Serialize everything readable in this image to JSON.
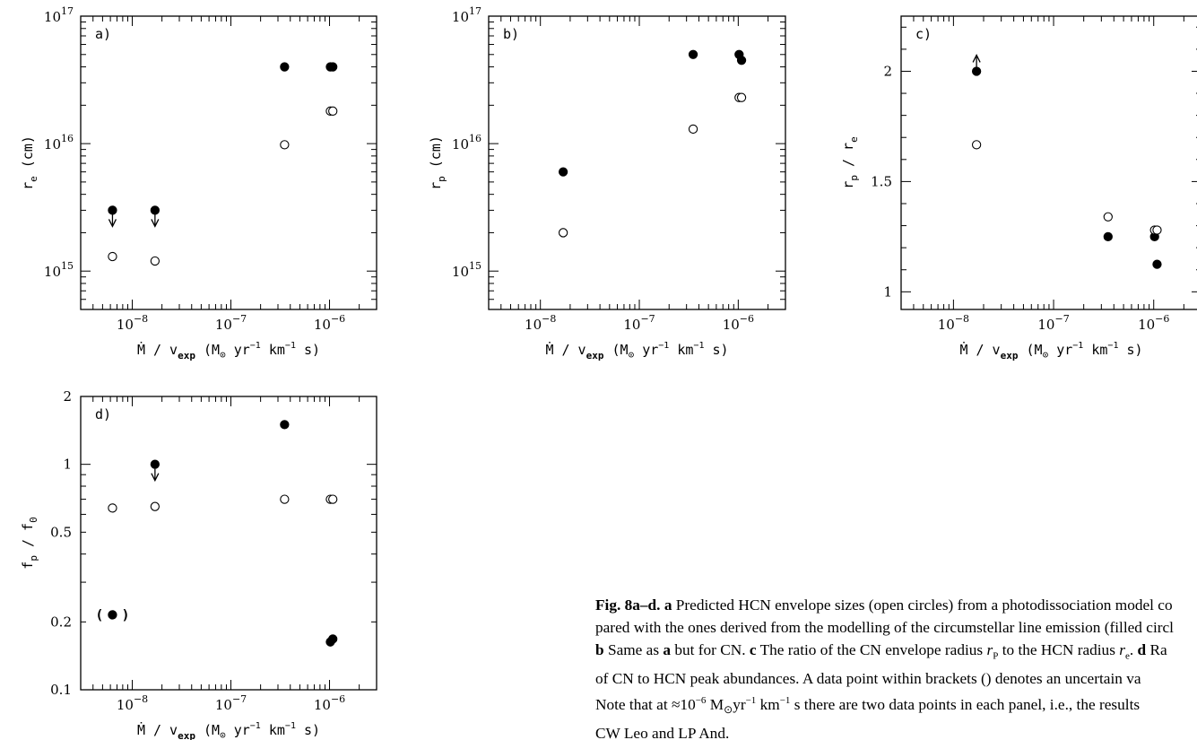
{
  "chart_data": [
    {
      "type": "scatter",
      "panel_label": "a)",
      "xlabel": "Ṁ / v_exp (M⊙ yr⁻¹ km⁻¹ s)",
      "ylabel": "r_e (cm)",
      "xscale": "log",
      "yscale": "log",
      "xlim": [
        3e-09,
        3e-06
      ],
      "ylim": [
        500000000000000.0,
        1e+17
      ],
      "x_ticks": [
        "10^-8",
        "10^-7",
        "10^-6"
      ],
      "y_ticks": [
        "10^15",
        "10^16",
        "10^17"
      ],
      "series": [
        {
          "marker": "filled",
          "points": [
            {
              "x": 6.3e-09,
              "y": 3000000000000000.0,
              "upper_limit": true
            },
            {
              "x": 1.7e-08,
              "y": 3000000000000000.0,
              "upper_limit": true
            },
            {
              "x": 3.5e-07,
              "y": 4e+16
            },
            {
              "x": 1.02e-06,
              "y": 4e+16
            },
            {
              "x": 1.08e-06,
              "y": 4e+16
            }
          ]
        },
        {
          "marker": "open",
          "points": [
            {
              "x": 6.3e-09,
              "y": 1300000000000000.0
            },
            {
              "x": 1.7e-08,
              "y": 1200000000000000.0
            },
            {
              "x": 3.5e-07,
              "y": 9800000000000000.0
            },
            {
              "x": 1.02e-06,
              "y": 1.8e+16
            },
            {
              "x": 1.08e-06,
              "y": 1.8e+16
            }
          ]
        }
      ]
    },
    {
      "type": "scatter",
      "panel_label": "b)",
      "xlabel": "Ṁ / v_exp (M⊙ yr⁻¹ km⁻¹ s)",
      "ylabel": "r_p (cm)",
      "xscale": "log",
      "yscale": "log",
      "xlim": [
        3e-09,
        3e-06
      ],
      "ylim": [
        500000000000000.0,
        1e+17
      ],
      "x_ticks": [
        "10^-8",
        "10^-7",
        "10^-6"
      ],
      "y_ticks": [
        "10^15",
        "10^16",
        "10^17"
      ],
      "series": [
        {
          "marker": "filled",
          "points": [
            {
              "x": 1.7e-08,
              "y": 6000000000000000.0
            },
            {
              "x": 3.5e-07,
              "y": 5e+16
            },
            {
              "x": 1.02e-06,
              "y": 5e+16
            },
            {
              "x": 1.08e-06,
              "y": 4.5e+16
            }
          ]
        },
        {
          "marker": "open",
          "points": [
            {
              "x": 1.7e-08,
              "y": 2000000000000000.0
            },
            {
              "x": 3.5e-07,
              "y": 1.3e+16
            },
            {
              "x": 1.02e-06,
              "y": 2.3e+16
            },
            {
              "x": 1.08e-06,
              "y": 2.3e+16
            }
          ]
        }
      ]
    },
    {
      "type": "scatter",
      "panel_label": "c)",
      "xlabel": "Ṁ / v_exp (M⊙ yr⁻¹ km⁻¹ s)",
      "ylabel": "r_p / r_e",
      "xscale": "log",
      "yscale": "linear",
      "xlim": [
        3e-09,
        3e-06
      ],
      "ylim": [
        0.92,
        2.25
      ],
      "x_ticks": [
        "10^-8",
        "10^-7",
        "10^-6"
      ],
      "y_ticks": [
        "1",
        "1.5",
        "2"
      ],
      "series": [
        {
          "marker": "filled",
          "points": [
            {
              "x": 1.7e-08,
              "y": 2.0,
              "lower_limit": true
            },
            {
              "x": 3.5e-07,
              "y": 1.25
            },
            {
              "x": 1.02e-06,
              "y": 1.25
            },
            {
              "x": 1.08e-06,
              "y": 1.125
            }
          ]
        },
        {
          "marker": "open",
          "points": [
            {
              "x": 1.7e-08,
              "y": 1.667
            },
            {
              "x": 3.5e-07,
              "y": 1.34
            },
            {
              "x": 1.02e-06,
              "y": 1.28
            },
            {
              "x": 1.08e-06,
              "y": 1.28
            }
          ]
        }
      ]
    },
    {
      "type": "scatter",
      "panel_label": "d)",
      "xlabel": "Ṁ / v_exp (M⊙ yr⁻¹ km⁻¹ s)",
      "ylabel": "f_p / f_0",
      "xscale": "log",
      "yscale": "log",
      "xlim": [
        3e-09,
        3e-06
      ],
      "ylim": [
        0.1,
        2
      ],
      "x_ticks": [
        "10^-8",
        "10^-7",
        "10^-6"
      ],
      "y_ticks": [
        "0.1",
        "0.2",
        "0.5",
        "1",
        "2"
      ],
      "series": [
        {
          "marker": "filled",
          "points": [
            {
              "x": 6.3e-09,
              "y": 0.215,
              "uncertain": true
            },
            {
              "x": 1.7e-08,
              "y": 1.0,
              "upper_limit": true
            },
            {
              "x": 3.5e-07,
              "y": 1.5
            },
            {
              "x": 1.02e-06,
              "y": 0.163
            },
            {
              "x": 1.08e-06,
              "y": 0.168
            }
          ]
        },
        {
          "marker": "open",
          "points": [
            {
              "x": 6.3e-09,
              "y": 0.64
            },
            {
              "x": 1.7e-08,
              "y": 0.65
            },
            {
              "x": 3.5e-07,
              "y": 0.7
            },
            {
              "x": 1.02e-06,
              "y": 0.7
            },
            {
              "x": 1.08e-06,
              "y": 0.7
            }
          ]
        }
      ]
    }
  ],
  "caption": {
    "lines": [
      "Fig. 8a–d. a Predicted HCN envelope sizes (open circles) from a photodissociation model co",
      "pared with the ones derived from the modelling of the circumstellar line emission (filled circl",
      "b Same as a but for CN. c The ratio of the CN envelope radius r_P to the HCN radius r_e. d Ra",
      "of CN to HCN peak abundances. A data point within brackets () denotes an uncertain va",
      "Note that at ≈10^−6 M⊙yr^−1 km^−1 s there are two data points in each panel, i.e., the results",
      "CW Leo and LP And."
    ],
    "fig_label": "Fig. 8a–d.",
    "line1_a": "a",
    "line1_rest": "Predicted HCN envelope sizes (open circles) from a photodissociation model co",
    "line2": "pared with the ones derived from the modelling of the circumstellar line emission (filled circl",
    "line3_b": "b",
    "line3_t1": "Same as",
    "line3_a": "a",
    "line3_t2": "but for CN.",
    "line3_c": "c",
    "line3_t3": "The ratio of the CN envelope radius",
    "line3_rP": "r",
    "line3_rP_sub": "P",
    "line3_t4": "to the HCN radius",
    "line3_re": "r",
    "line3_re_sub": "e",
    "line3_t5": ".",
    "line3_d": "d",
    "line3_t6": "Ra",
    "line4": "of CN to HCN peak abundances. A data point within brackets () denotes an uncertain va",
    "line5_t1": "Note that at ≈10",
    "line5_sup1": "−6",
    "line5_t2": " M",
    "line5_sun": "⊙",
    "line5_t3": "yr",
    "line5_sup2": "−1",
    "line5_t4": " km",
    "line5_sup3": "−1",
    "line5_t5": " s there are two data points in each panel, i.e., the results",
    "line6": "CW Leo and LP And."
  }
}
